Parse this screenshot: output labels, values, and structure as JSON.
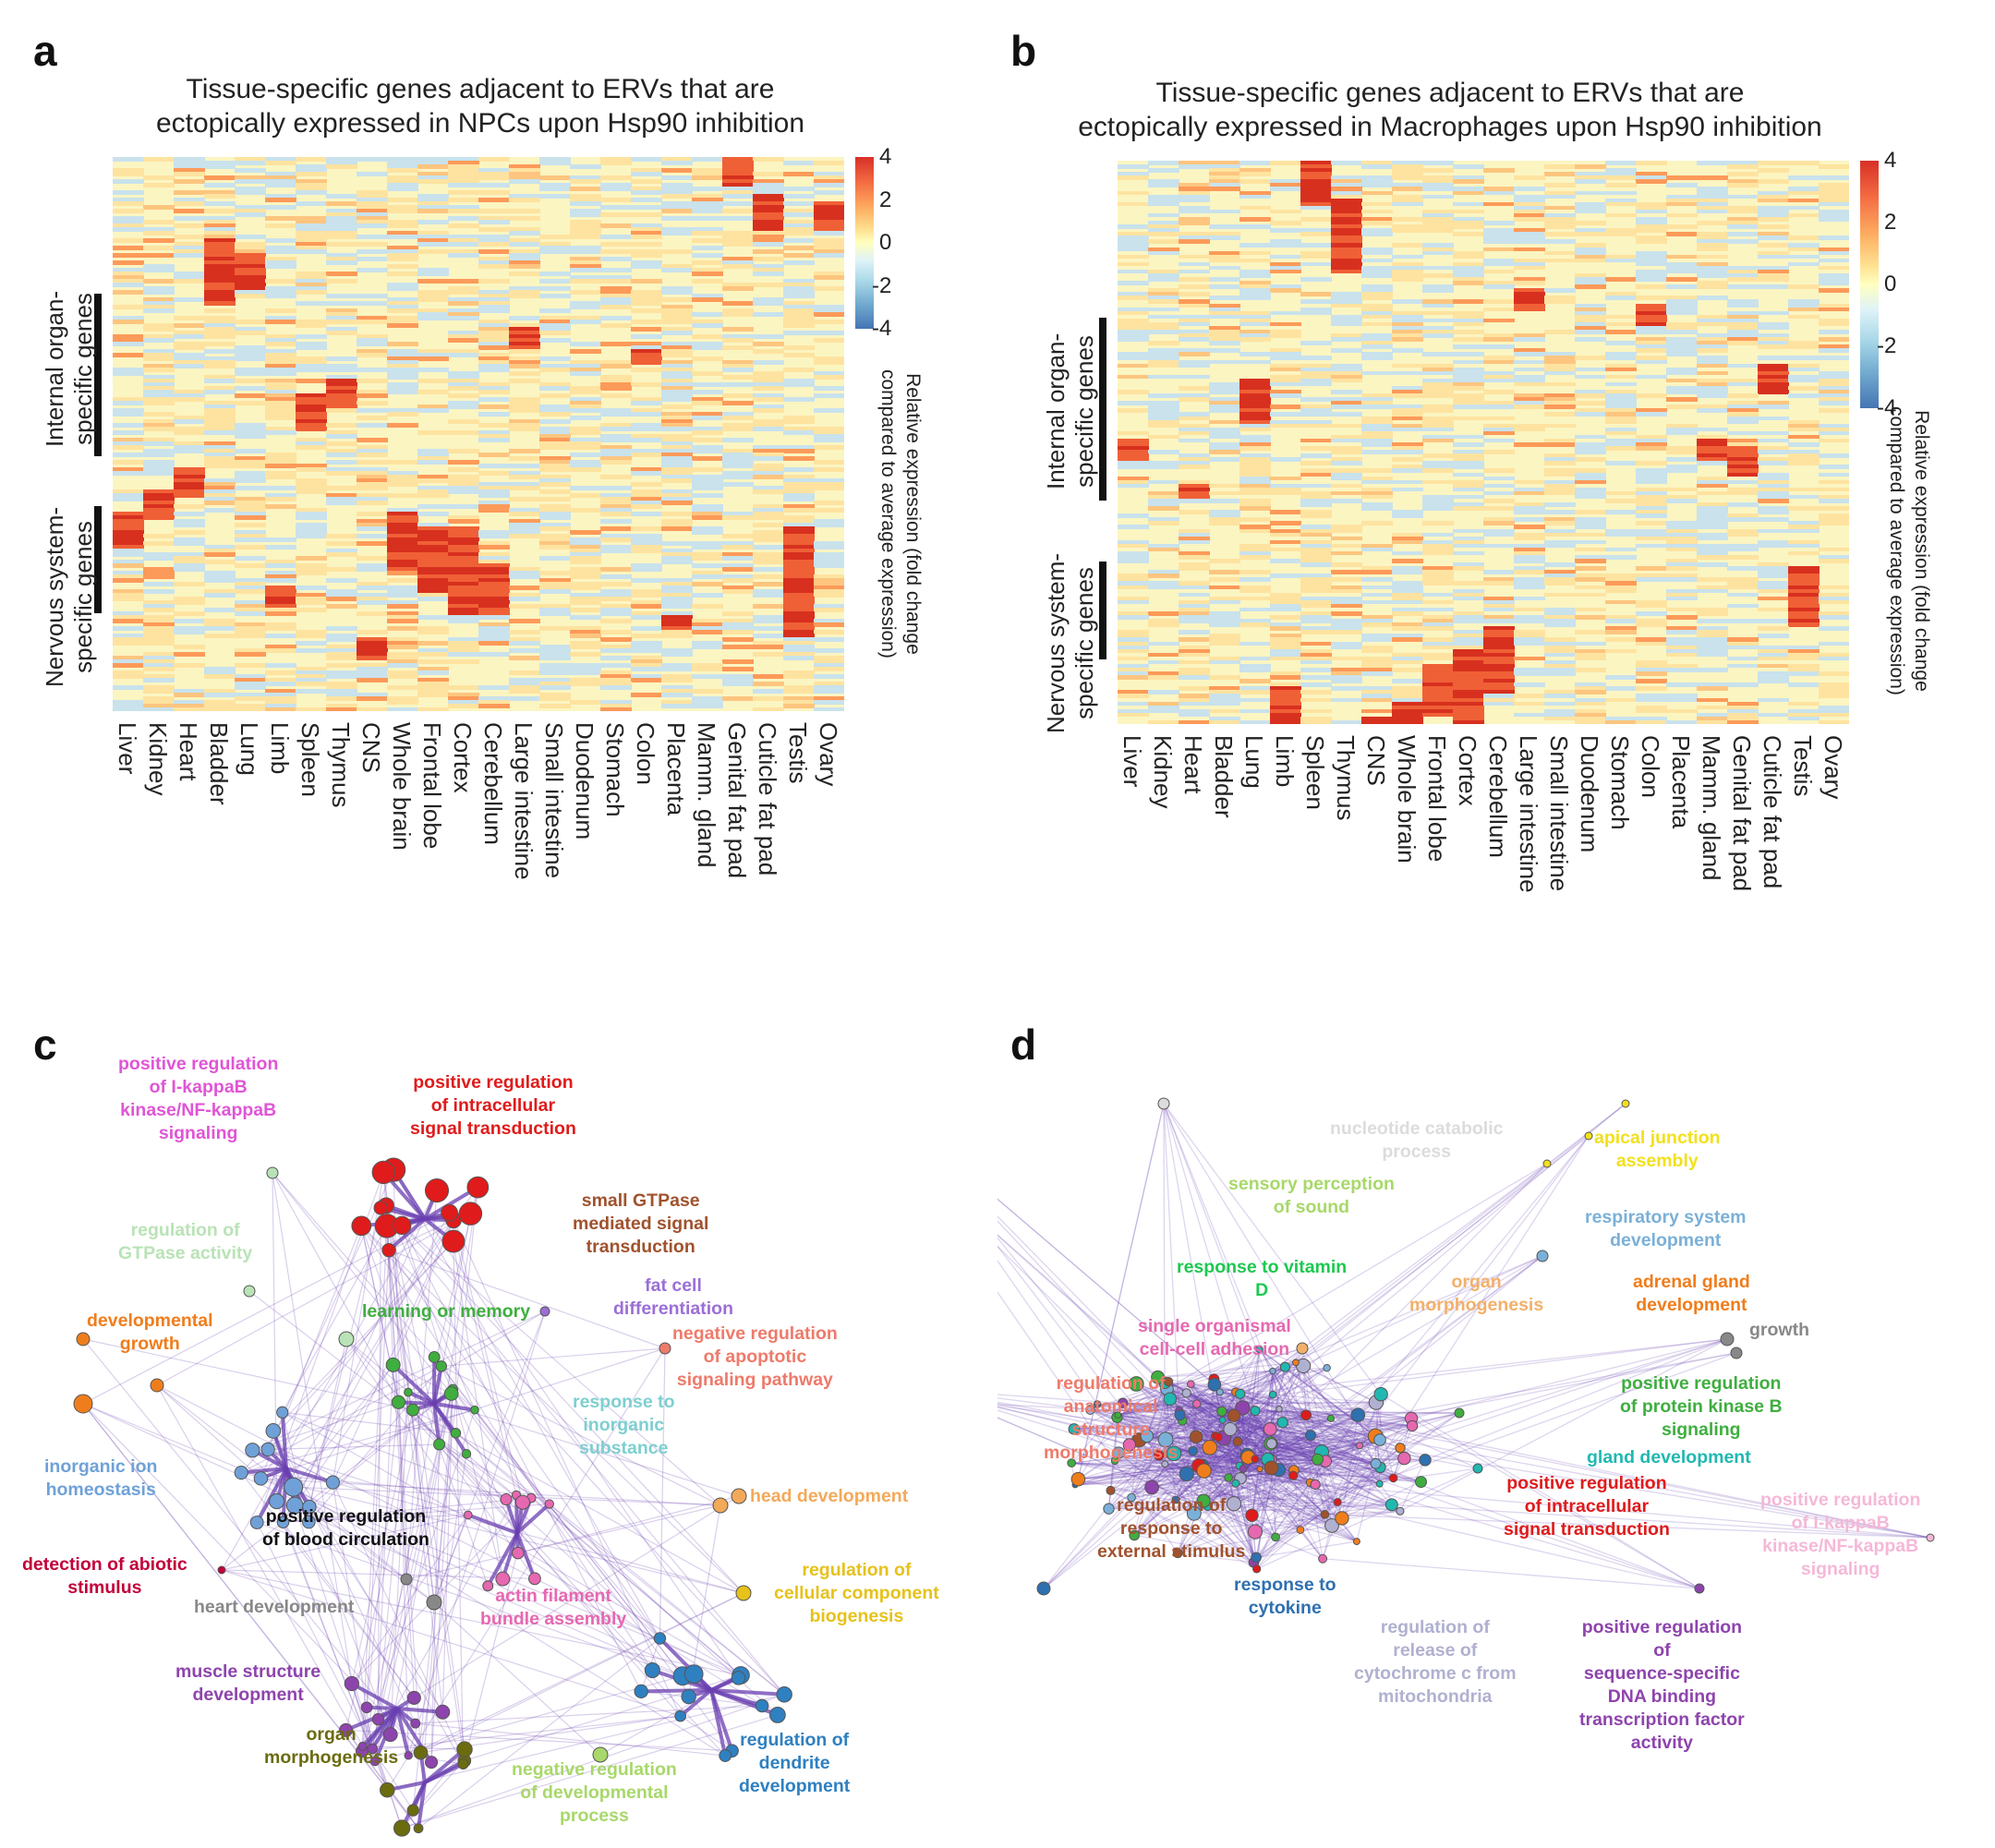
{
  "panel_a": {
    "letter": "a",
    "title_line1": "Tissue-specific genes adjacent to ERVs that are",
    "title_line2": "ectopically expressed in NPCs upon Hsp90 inhibition",
    "row_group_internal_line1": "Internal organ-",
    "row_group_internal_line2": "specific genes",
    "row_group_nervous_line1": "Nervous system-",
    "row_group_nervous_line2": "specific genes",
    "colorbar_ticks": [
      "4",
      "2",
      "0",
      "-2",
      "-4"
    ],
    "colorbar_title_line1": "Relative expression (fold change",
    "colorbar_title_line2": "compared to average expression)",
    "columns": [
      "Liver",
      "Kidney",
      "Heart",
      "Bladder",
      "Lung",
      "Limb",
      "Spleen",
      "Thymus",
      "CNS",
      "Whole brain",
      "Frontal lobe",
      "Cortex",
      "Cerebellum",
      "Large intestine",
      "Small intestine",
      "Duodenum",
      "Stomach",
      "Colon",
      "Placenta",
      "Mamm. gland",
      "Genital fat pad",
      "Cuticle fat pad",
      "Testis",
      "Ovary"
    ]
  },
  "panel_b": {
    "letter": "b",
    "title_line1": "Tissue-specific genes adjacent to ERVs that are",
    "title_line2": "ectopically expressed in Macrophages upon Hsp90 inhibition",
    "row_group_internal_line1": "Internal organ-",
    "row_group_internal_line2": "specific genes",
    "row_group_nervous_line1": "Nervous system-",
    "row_group_nervous_line2": "specific genes",
    "colorbar_ticks": [
      "4",
      "2",
      "0",
      "-2",
      "-4"
    ],
    "colorbar_title_line1": "Relative expression (fold change",
    "colorbar_title_line2": "compared to average expression)",
    "columns": [
      "Liver",
      "Kidney",
      "Heart",
      "Bladder",
      "Lung",
      "Limb",
      "Spleen",
      "Thymus",
      "CNS",
      "Whole brain",
      "Frontal lobe",
      "Cortex",
      "Cerebellum",
      "Large intestine",
      "Small intestine",
      "Duodenum",
      "Stomach",
      "Colon",
      "Placenta",
      "Mamm. gland",
      "Genital fat pad",
      "Cuticle fat pad",
      "Testis",
      "Ovary"
    ]
  },
  "panel_c": {
    "letter": "c",
    "labels": [
      {
        "text": "positive regulation\nof I-kappaB\nkinase/NF-kappaB\nsignaling",
        "color": "#e055d6"
      },
      {
        "text": "positive regulation\nof intracellular\nsignal transduction",
        "color": "#e01b1b"
      },
      {
        "text": "small GTPase\nmediated signal\ntransduction",
        "color": "#a0522d"
      },
      {
        "text": "regulation of\nGTPase activity",
        "color": "#b9e3b6"
      },
      {
        "text": "learning or memory",
        "color": "#3fae3f"
      },
      {
        "text": "fat cell\ndifferentiation",
        "color": "#9b6fd6"
      },
      {
        "text": "developmental\ngrowth",
        "color": "#f07d1c"
      },
      {
        "text": "negative regulation\nof apoptotic\nsignaling pathway",
        "color": "#ee7a6a"
      },
      {
        "text": "response to\ninorganic\nsubstance",
        "color": "#7ecfd0"
      },
      {
        "text": "inorganic ion\nhomeostasis",
        "color": "#6fa1d8"
      },
      {
        "text": "positive regulation\nof blood circulation",
        "color": "#111111"
      },
      {
        "text": "head development",
        "color": "#f3a95a"
      },
      {
        "text": "detection of abiotic\nstimulus",
        "color": "#c2003a"
      },
      {
        "text": "heart development",
        "color": "#888888"
      },
      {
        "text": "actin filament\nbundle assembly",
        "color": "#e668b0"
      },
      {
        "text": "regulation of\ncellular component\nbiogenesis",
        "color": "#e6c21a"
      },
      {
        "text": "muscle structure\ndevelopment",
        "color": "#8e44ad"
      },
      {
        "text": "organ\nmorphogenesis",
        "color": "#6b6b10"
      },
      {
        "text": "negative regulation\nof developmental\nprocess",
        "color": "#a8d86a"
      },
      {
        "text": "regulation of\ndendrite\ndevelopment",
        "color": "#2f80c0"
      }
    ]
  },
  "panel_d": {
    "letter": "d",
    "labels": [
      {
        "text": "nucleotide catabolic\nprocess",
        "color": "#dcdcdc"
      },
      {
        "text": "apical junction\nassembly",
        "color": "#f2e01c"
      },
      {
        "text": "sensory perception\nof sound",
        "color": "#a8d86a"
      },
      {
        "text": "respiratory system\ndevelopment",
        "color": "#7ab0d8"
      },
      {
        "text": "response to vitamin\nD",
        "color": "#1ec850"
      },
      {
        "text": "organ\nmorphogenesis",
        "color": "#f3b06a"
      },
      {
        "text": "adrenal gland\ndevelopment",
        "color": "#f07d1c"
      },
      {
        "text": "growth",
        "color": "#888888"
      },
      {
        "text": "single organismal\ncell-cell adhesion",
        "color": "#e668b0"
      },
      {
        "text": "regulation of\nanatomical\nstructure\nmorphogenesis",
        "color": "#ee7a6a"
      },
      {
        "text": "positive regulation\nof protein kinase B\nsignaling",
        "color": "#3fae3f"
      },
      {
        "text": "gland development",
        "color": "#20b8b0"
      },
      {
        "text": "regulation of\nresponse to\nexternal stimulus",
        "color": "#a0522d"
      },
      {
        "text": "positive regulation\nof intracellular\nsignal transduction",
        "color": "#e01b1b"
      },
      {
        "text": "positive regulation\nof I-kappaB\nkinase/NF-kappaB\nsignaling",
        "color": "#f5b8d8"
      },
      {
        "text": "response to\ncytokine",
        "color": "#2f70b0"
      },
      {
        "text": "regulation of\nrelease of\ncytochrome c from\nmitochondria",
        "color": "#b0b0d0"
      },
      {
        "text": "positive regulation\nof\nsequence-specific\nDNA binding\ntranscription factor\nactivity",
        "color": "#8e44ad"
      }
    ]
  }
}
